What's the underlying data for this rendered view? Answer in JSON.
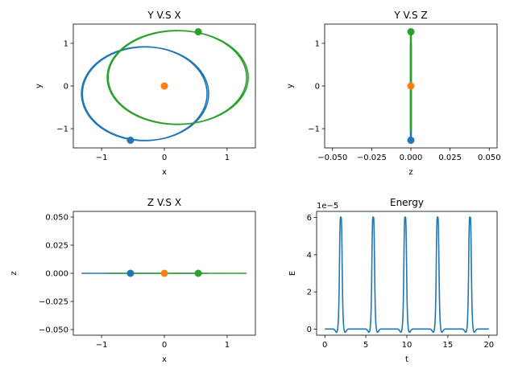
{
  "figure": {
    "background": "#ffffff"
  },
  "chart_data": [
    {
      "type": "line",
      "title": "Y V.S X",
      "xlabel": "x",
      "ylabel": "y",
      "xlim": [
        -1.45,
        1.45
      ],
      "ylim": [
        -1.45,
        1.45
      ],
      "xticks": [
        -1,
        0,
        1
      ],
      "xticklabels": [
        "−1",
        "0",
        "1"
      ],
      "yticks": [
        -1,
        0,
        1
      ],
      "yticklabels": [
        "−1",
        "0",
        "1"
      ],
      "grid": false,
      "series": [
        {
          "color": "#1f77b4",
          "ellipse": {
            "cx": -0.32,
            "cy": -0.18,
            "rx": 1.0,
            "ry": 1.1
          }
        },
        {
          "color": "#2ca02c",
          "ellipse": {
            "cx": 0.2,
            "cy": 0.2,
            "rx": 1.11,
            "ry": 1.1
          }
        }
      ],
      "points": [
        {
          "x": -0.54,
          "y": -1.27,
          "color": "#1f77b4"
        },
        {
          "x": 0.0,
          "y": 0.0,
          "color": "#ff7f0e"
        },
        {
          "x": 0.54,
          "y": 1.27,
          "color": "#2ca02c"
        }
      ]
    },
    {
      "type": "line",
      "title": "Y V.S Z",
      "xlabel": "z",
      "ylabel": "y",
      "xlim": [
        -0.055,
        0.055
      ],
      "ylim": [
        -1.45,
        1.45
      ],
      "xticks": [
        -0.05,
        -0.025,
        0.0,
        0.025,
        0.05
      ],
      "xticklabels": [
        "−0.050",
        "−0.025",
        "0.000",
        "0.025",
        "0.050"
      ],
      "yticks": [
        -1,
        0,
        1
      ],
      "yticklabels": [
        "−1",
        "0",
        "1"
      ],
      "grid": false,
      "series": [
        {
          "color": "#1f77b4",
          "x": [
            0,
            0
          ],
          "y": [
            -1.27,
            1.0
          ]
        },
        {
          "color": "#2ca02c",
          "x": [
            0,
            0
          ],
          "y": [
            -1.05,
            1.27
          ]
        }
      ],
      "points": [
        {
          "x": 0.0,
          "y": -1.27,
          "color": "#1f77b4"
        },
        {
          "x": 0.0,
          "y": 0.0,
          "color": "#ff7f0e"
        },
        {
          "x": 0.0,
          "y": 1.27,
          "color": "#2ca02c"
        }
      ]
    },
    {
      "type": "line",
      "title": "Z V.S X",
      "xlabel": "x",
      "ylabel": "z",
      "xlim": [
        -1.45,
        1.45
      ],
      "ylim": [
        -0.055,
        0.055
      ],
      "xticks": [
        -1,
        0,
        1
      ],
      "xticklabels": [
        "−1",
        "0",
        "1"
      ],
      "yticks": [
        -0.05,
        -0.025,
        0.0,
        0.025,
        0.05
      ],
      "yticklabels": [
        "−0.050",
        "−0.025",
        "0.000",
        "0.025",
        "0.050"
      ],
      "grid": false,
      "series": [
        {
          "color": "#1f77b4",
          "x": [
            -1.32,
            0.7
          ],
          "y": [
            0,
            0
          ]
        },
        {
          "color": "#2ca02c",
          "x": [
            -0.9,
            1.31
          ],
          "y": [
            0,
            0
          ]
        }
      ],
      "points": [
        {
          "x": -0.54,
          "y": 0.0,
          "color": "#1f77b4"
        },
        {
          "x": 0.0,
          "y": 0.0,
          "color": "#ff7f0e"
        },
        {
          "x": 0.54,
          "y": 0.0,
          "color": "#2ca02c"
        }
      ]
    },
    {
      "type": "line",
      "title": "Energy",
      "xlabel": "t",
      "ylabel": "E",
      "offset_text": "1e−5",
      "xlim": [
        -1.0,
        21.0
      ],
      "ylim": [
        -0.33,
        6.33
      ],
      "xticks": [
        0,
        5,
        10,
        15,
        20
      ],
      "xticklabels": [
        "0",
        "5",
        "10",
        "15",
        "20"
      ],
      "yticks": [
        0,
        2,
        4,
        6
      ],
      "yticklabels": [
        "0",
        "2",
        "4",
        "6"
      ],
      "grid": false,
      "series": [
        {
          "color": "#1f77b4",
          "t_start": 0,
          "t_end": 20,
          "peak_times": [
            1.95,
            5.9,
            9.8,
            13.75,
            17.7
          ],
          "peak_value": 6.05
        }
      ]
    }
  ]
}
